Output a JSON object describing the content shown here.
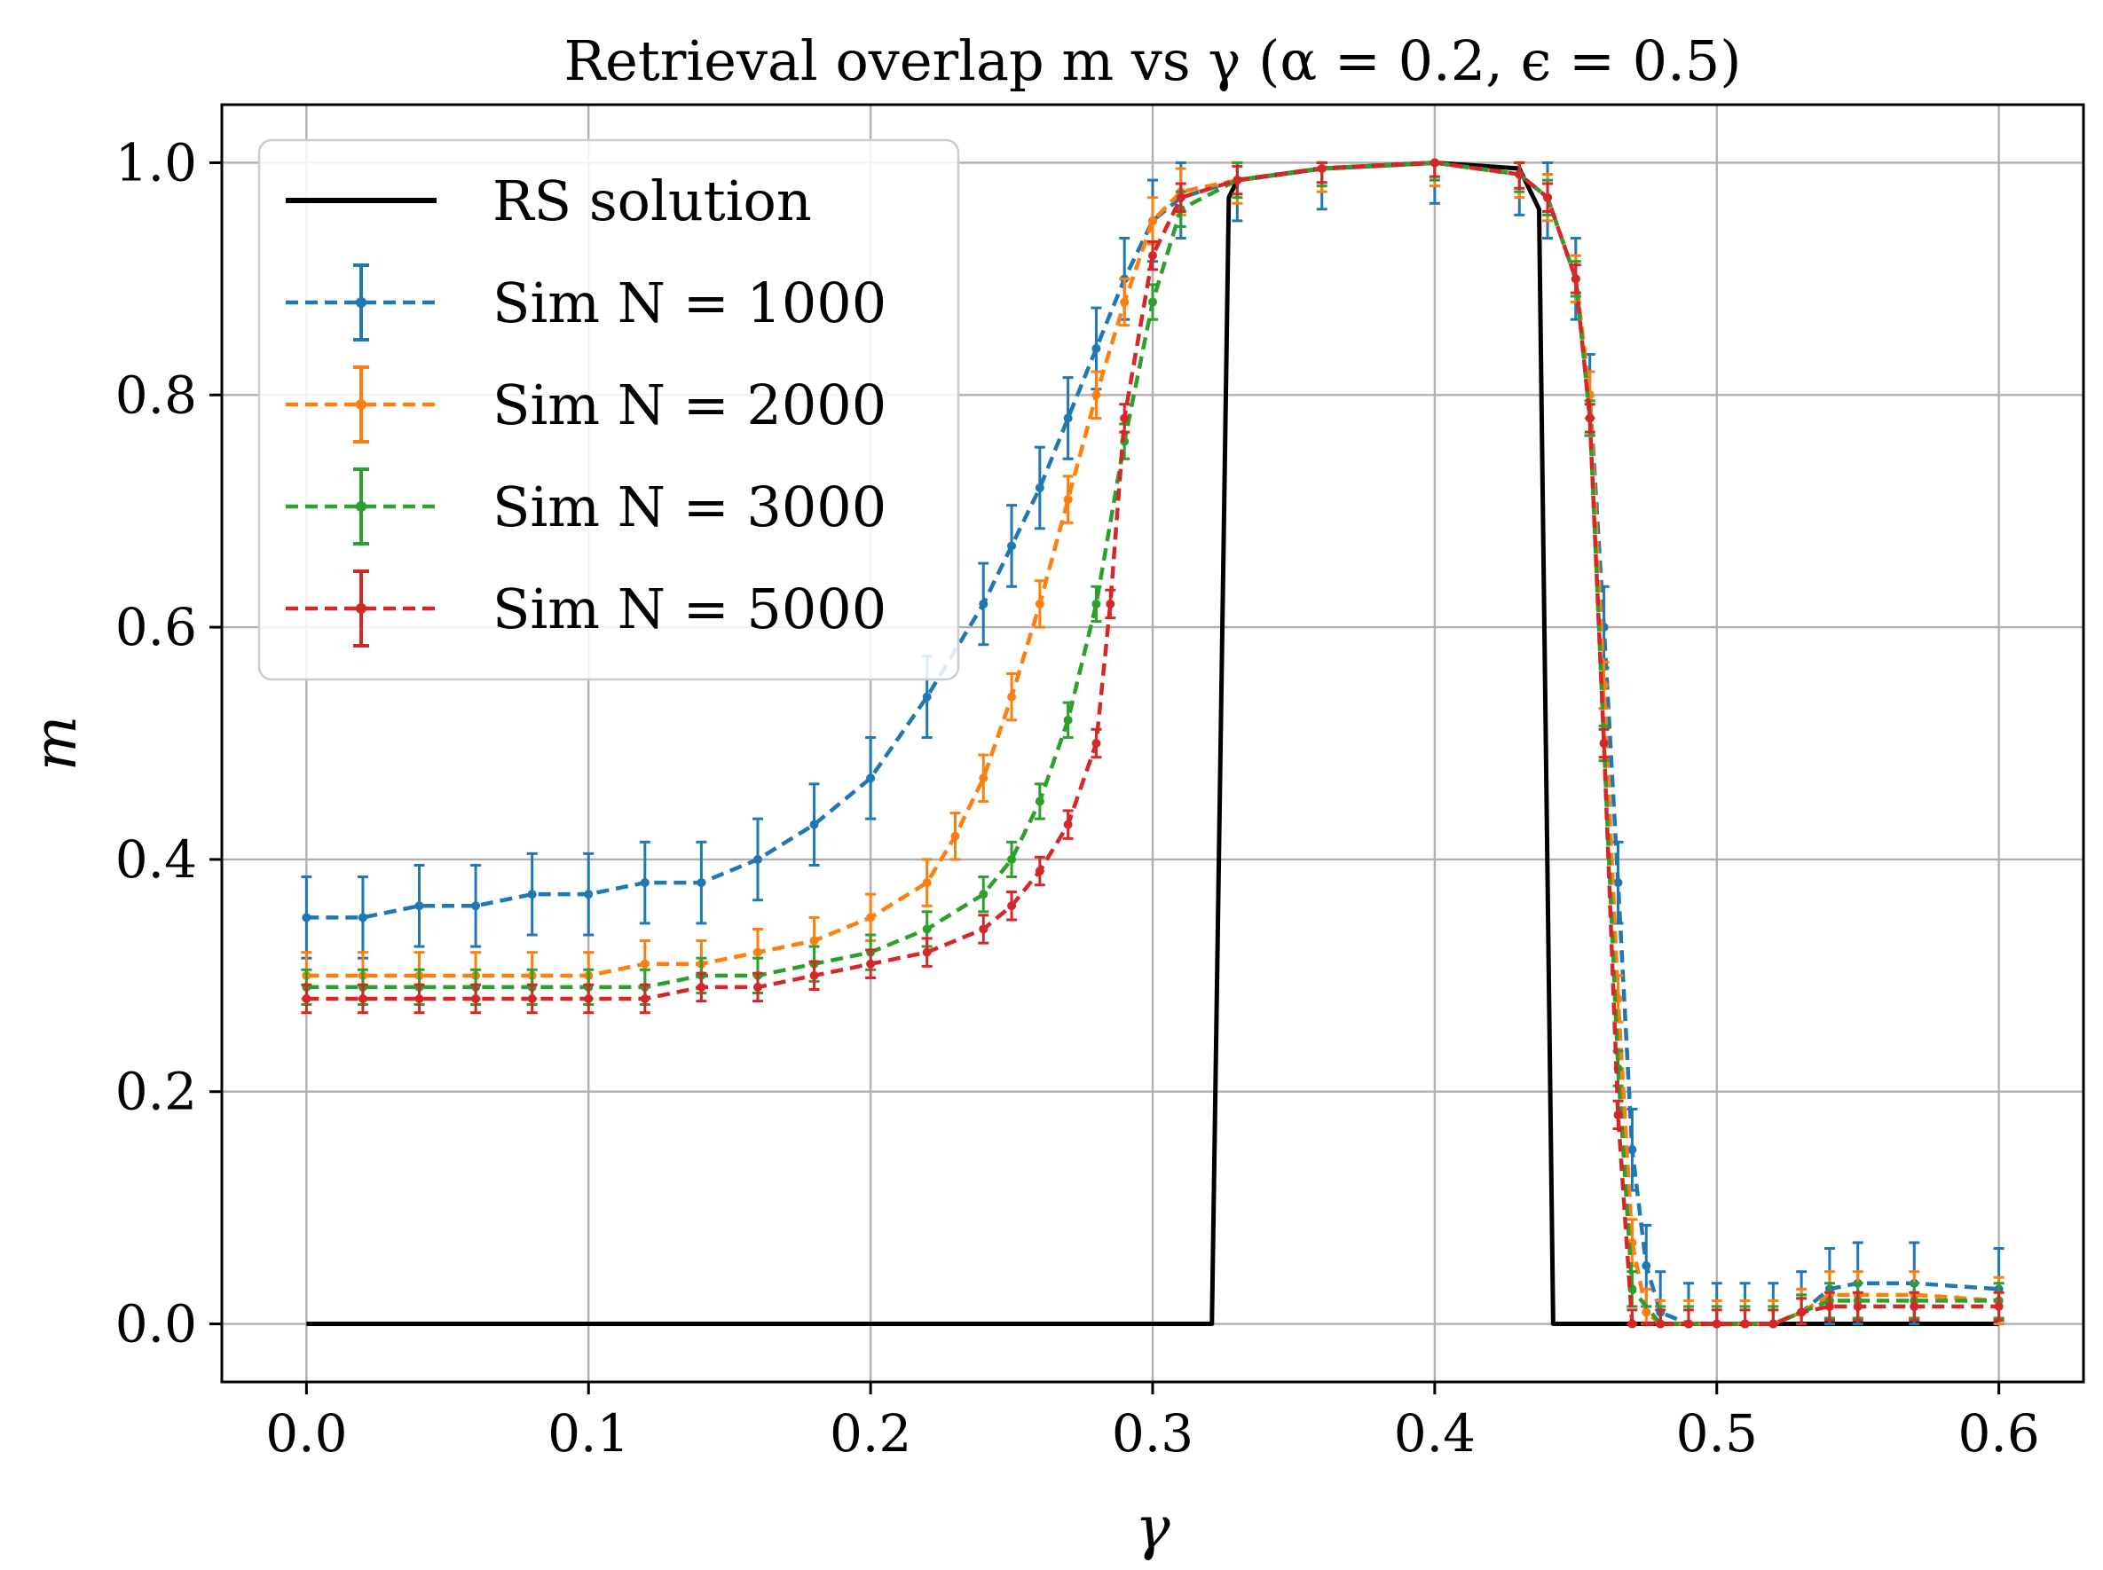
{
  "chart_data": {
    "type": "line",
    "title": "Retrieval overlap m vs γ (α = 0.2, ϵ = 0.5)",
    "xlabel": "γ",
    "ylabel": "m",
    "xlim": [
      -0.03,
      0.63
    ],
    "ylim": [
      -0.05,
      1.05
    ],
    "grid": true,
    "legend_position": "top-left",
    "x_ticks": [
      0.0,
      0.1,
      0.2,
      0.3,
      0.4,
      0.5,
      0.6
    ],
    "x_tick_labels": [
      "0.0",
      "0.1",
      "0.2",
      "0.3",
      "0.4",
      "0.5",
      "0.6"
    ],
    "y_ticks": [
      0.0,
      0.2,
      0.4,
      0.6,
      0.8,
      1.0
    ],
    "y_tick_labels": [
      "0.0",
      "0.2",
      "0.4",
      "0.6",
      "0.8",
      "1.0"
    ],
    "rs_solution": {
      "name": "RS solution",
      "color": "#000000",
      "x": [
        0.0,
        0.32,
        0.321,
        0.327,
        0.33,
        0.36,
        0.4,
        0.43,
        0.437,
        0.442,
        0.6
      ],
      "y": [
        0.0,
        0.0,
        0.0,
        0.97,
        0.985,
        0.995,
        1.0,
        0.995,
        0.96,
        0.0,
        0.0
      ]
    },
    "series": [
      {
        "name": "Sim N = 1000",
        "color": "#1f77b4",
        "x": [
          0.0,
          0.02,
          0.04,
          0.06,
          0.08,
          0.1,
          0.12,
          0.14,
          0.16,
          0.18,
          0.2,
          0.22,
          0.24,
          0.25,
          0.26,
          0.27,
          0.28,
          0.29,
          0.3,
          0.31,
          0.33,
          0.36,
          0.4,
          0.43,
          0.44,
          0.45,
          0.455,
          0.46,
          0.465,
          0.47,
          0.475,
          0.48,
          0.49,
          0.5,
          0.51,
          0.52,
          0.53,
          0.54,
          0.55,
          0.57,
          0.6
        ],
        "y": [
          0.35,
          0.35,
          0.36,
          0.36,
          0.37,
          0.37,
          0.38,
          0.38,
          0.4,
          0.43,
          0.47,
          0.54,
          0.62,
          0.67,
          0.72,
          0.78,
          0.84,
          0.9,
          0.95,
          0.97,
          0.985,
          0.995,
          1.0,
          0.99,
          0.97,
          0.9,
          0.8,
          0.6,
          0.38,
          0.15,
          0.05,
          0.01,
          0.0,
          0.0,
          0.0,
          0.0,
          0.01,
          0.03,
          0.035,
          0.035,
          0.03
        ],
        "err": 0.035
      },
      {
        "name": "Sim N = 2000",
        "color": "#ff7f0e",
        "x": [
          0.0,
          0.02,
          0.04,
          0.06,
          0.08,
          0.1,
          0.12,
          0.14,
          0.16,
          0.18,
          0.2,
          0.22,
          0.23,
          0.24,
          0.25,
          0.26,
          0.27,
          0.28,
          0.29,
          0.3,
          0.31,
          0.33,
          0.36,
          0.4,
          0.43,
          0.44,
          0.45,
          0.455,
          0.46,
          0.465,
          0.47,
          0.475,
          0.48,
          0.49,
          0.5,
          0.51,
          0.52,
          0.53,
          0.54,
          0.55,
          0.57,
          0.6
        ],
        "y": [
          0.3,
          0.3,
          0.3,
          0.3,
          0.3,
          0.3,
          0.31,
          0.31,
          0.32,
          0.33,
          0.35,
          0.38,
          0.42,
          0.47,
          0.54,
          0.62,
          0.71,
          0.8,
          0.88,
          0.95,
          0.975,
          0.985,
          0.995,
          1.0,
          0.99,
          0.97,
          0.9,
          0.8,
          0.55,
          0.28,
          0.07,
          0.01,
          0.0,
          0.0,
          0.0,
          0.0,
          0.0,
          0.01,
          0.025,
          0.025,
          0.025,
          0.02
        ],
        "err": 0.02
      },
      {
        "name": "Sim N = 3000",
        "color": "#2ca02c",
        "x": [
          0.0,
          0.02,
          0.04,
          0.06,
          0.08,
          0.1,
          0.12,
          0.14,
          0.16,
          0.18,
          0.2,
          0.22,
          0.24,
          0.25,
          0.26,
          0.27,
          0.28,
          0.29,
          0.3,
          0.31,
          0.33,
          0.36,
          0.4,
          0.43,
          0.44,
          0.45,
          0.455,
          0.46,
          0.465,
          0.47,
          0.48,
          0.49,
          0.5,
          0.51,
          0.52,
          0.53,
          0.54,
          0.55,
          0.57,
          0.6
        ],
        "y": [
          0.29,
          0.29,
          0.29,
          0.29,
          0.29,
          0.29,
          0.29,
          0.3,
          0.3,
          0.31,
          0.32,
          0.34,
          0.37,
          0.4,
          0.45,
          0.52,
          0.62,
          0.76,
          0.88,
          0.96,
          0.985,
          0.995,
          1.0,
          0.99,
          0.97,
          0.9,
          0.78,
          0.5,
          0.22,
          0.03,
          0.0,
          0.0,
          0.0,
          0.0,
          0.0,
          0.01,
          0.02,
          0.02,
          0.02,
          0.02
        ],
        "err": 0.015
      },
      {
        "name": "Sim N = 5000",
        "color": "#d62728",
        "x": [
          0.0,
          0.02,
          0.04,
          0.06,
          0.08,
          0.1,
          0.12,
          0.14,
          0.16,
          0.18,
          0.2,
          0.22,
          0.24,
          0.25,
          0.26,
          0.27,
          0.28,
          0.285,
          0.29,
          0.3,
          0.31,
          0.33,
          0.36,
          0.4,
          0.43,
          0.44,
          0.45,
          0.455,
          0.46,
          0.465,
          0.47,
          0.48,
          0.49,
          0.5,
          0.51,
          0.52,
          0.53,
          0.54,
          0.55,
          0.57,
          0.6
        ],
        "y": [
          0.28,
          0.28,
          0.28,
          0.28,
          0.28,
          0.28,
          0.28,
          0.29,
          0.29,
          0.3,
          0.31,
          0.32,
          0.34,
          0.36,
          0.39,
          0.43,
          0.5,
          0.62,
          0.78,
          0.92,
          0.97,
          0.985,
          0.995,
          1.0,
          0.99,
          0.97,
          0.9,
          0.78,
          0.5,
          0.18,
          0.0,
          0.0,
          0.0,
          0.0,
          0.0,
          0.0,
          0.01,
          0.015,
          0.015,
          0.015,
          0.015
        ],
        "err": 0.012
      }
    ]
  }
}
